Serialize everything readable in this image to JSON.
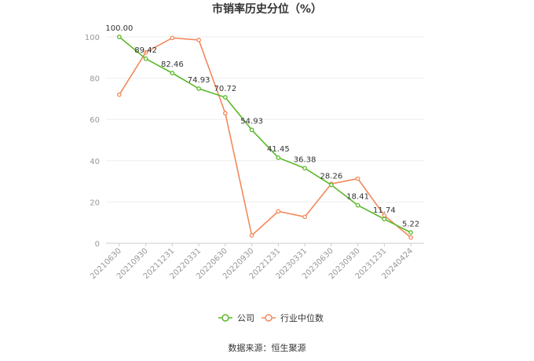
{
  "chart_data": {
    "type": "line",
    "title": "市销率历史分位（%）",
    "categories": [
      "20210630",
      "20210930",
      "20211231",
      "20220331",
      "20220630",
      "20220930",
      "20221231",
      "20230331",
      "20230630",
      "20230930",
      "20231231",
      "20240424"
    ],
    "ylim": [
      0,
      100
    ],
    "yticks": [
      0,
      20,
      40,
      60,
      80,
      100
    ],
    "grid": true,
    "legend_position": "bottom",
    "series": [
      {
        "name": "公司",
        "color": "#5cb82a",
        "values": [
          100.0,
          89.42,
          82.46,
          74.93,
          70.72,
          54.93,
          41.45,
          36.38,
          28.26,
          18.41,
          11.74,
          5.22
        ],
        "labels": [
          "100.00",
          "89.42",
          "82.46",
          "74.93",
          "70.72",
          "54.93",
          "41.45",
          "36.38",
          "28.26",
          "18.41",
          "11.74",
          "5.22"
        ]
      },
      {
        "name": "行业中位数",
        "color": "#f2895b",
        "values": [
          72.0,
          92.5,
          99.5,
          98.5,
          63.0,
          3.8,
          15.5,
          12.8,
          28.8,
          31.3,
          13.5,
          2.8
        ]
      }
    ],
    "source": "数据来源：恒生聚源"
  }
}
